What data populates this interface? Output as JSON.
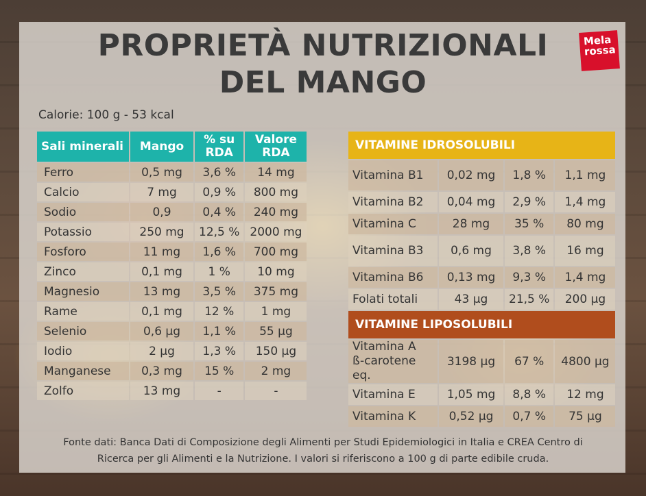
{
  "title": {
    "line1": "PROPRIETÀ NUTRIZIONALI",
    "line2": "DEL MANGO"
  },
  "logo": {
    "line1": "Mela",
    "line2": "rossa",
    "brand_color": "#d8102b"
  },
  "calorie": "Calorie: 100 g - 53 kcal",
  "minerals": {
    "header": [
      "Sali minerali",
      "Mango",
      "% su RDA",
      "Valore RDA"
    ],
    "header_color": "#1eb3aa",
    "rows": [
      [
        "Ferro",
        "0,5 mg",
        "3,6 %",
        "14 mg"
      ],
      [
        "Calcio",
        "7 mg",
        "0,9 %",
        "800 mg"
      ],
      [
        "Sodio",
        "0,9",
        "0,4 %",
        "240 mg"
      ],
      [
        "Potassio",
        "250 mg",
        "12,5 %",
        "2000 mg"
      ],
      [
        "Fosforo",
        "11 mg",
        "1,6 %",
        "700 mg"
      ],
      [
        "Zinco",
        "0,1 mg",
        "1 %",
        "10 mg"
      ],
      [
        "Magnesio",
        "13 mg",
        "3,5 %",
        "375 mg"
      ],
      [
        "Rame",
        "0,1 mg",
        "12 %",
        "1 mg"
      ],
      [
        "Selenio",
        "0,6 µg",
        "1,1 %",
        "55 µg"
      ],
      [
        "Iodio",
        "2 µg",
        "1,3 %",
        "150 µg"
      ],
      [
        "Manganese",
        "0,3 mg",
        "15 %",
        "2 mg"
      ],
      [
        "Zolfo",
        "13 mg",
        "-",
        "-"
      ]
    ]
  },
  "vitamins_hydro": {
    "title": "VITAMINE IDROSOLUBILI",
    "color": "#e7b417",
    "rows": [
      [
        "Vitamina B1",
        "0,02 mg",
        "1,8 %",
        "1,1 mg"
      ],
      [
        "Vitamina B2",
        "0,04 mg",
        "2,9 %",
        "1,4 mg"
      ],
      [
        "Vitamina C",
        "28 mg",
        "35 %",
        "80 mg"
      ],
      [
        "Vitamina B3",
        "0,6 mg",
        "3,8 %",
        "16 mg"
      ],
      [
        "Vitamina B6",
        "0,13 mg",
        "9,3 %",
        "1,4 mg"
      ],
      [
        "Folati totali",
        "43 µg",
        "21,5 %",
        "200 µg"
      ]
    ]
  },
  "vitamins_lipo": {
    "title": "VITAMINE LIPOSOLUBILI",
    "color": "#b04d1d",
    "rows": [
      [
        "Vitamina A",
        "3198 µg",
        "67 %",
        "4800 µg"
      ],
      [
        "Vitamina E",
        "1,05 mg",
        "8,8 %",
        "12 mg"
      ],
      [
        "Vitamina K",
        "0,52 µg",
        "0,7 %",
        "75 µg"
      ]
    ],
    "vitamin_a_subline": "ß-carotene eq."
  },
  "footer": {
    "line1": "Fonte dati: Banca Dati di Composizione degli Alimenti per Studi Epidemiologici in Italia e CREA Centro di",
    "line2": "Ricerca per gli Alimenti e la Nutrizione. I valori si riferiscono a 100 g di parte edibile cruda."
  }
}
